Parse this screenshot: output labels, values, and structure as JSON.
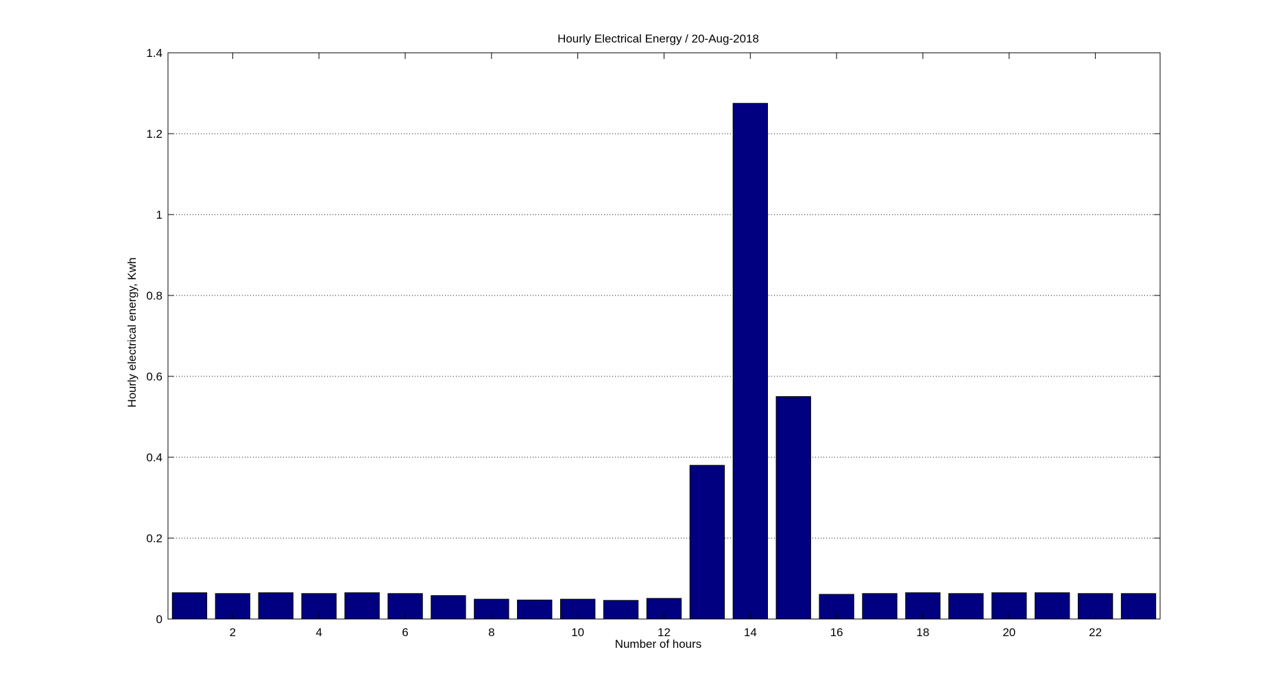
{
  "chart_data": {
    "type": "bar",
    "title": "Hourly Electrical Energy / 20-Aug-2018",
    "xlabel": "Number of hours",
    "ylabel": "Hourly electrical energy, Kwh",
    "x": [
      1,
      2,
      3,
      4,
      5,
      6,
      7,
      8,
      9,
      10,
      11,
      12,
      13,
      14,
      15,
      16,
      17,
      18,
      19,
      20,
      21,
      22,
      23
    ],
    "values": [
      0.065,
      0.063,
      0.065,
      0.063,
      0.065,
      0.063,
      0.058,
      0.049,
      0.047,
      0.049,
      0.046,
      0.051,
      0.38,
      1.275,
      0.55,
      0.061,
      0.063,
      0.065,
      0.063,
      0.065,
      0.065,
      0.063,
      0.063
    ],
    "xlim": [
      0.5,
      23.5
    ],
    "ylim": [
      0,
      1.4
    ],
    "xticks": [
      "2",
      "4",
      "6",
      "8",
      "10",
      "12",
      "14",
      "16",
      "18",
      "20",
      "22"
    ],
    "xtick_values": [
      2,
      4,
      6,
      8,
      10,
      12,
      14,
      16,
      18,
      20,
      22
    ],
    "yticks": [
      "0",
      "0.2",
      "0.4",
      "0.6",
      "0.8",
      "1",
      "1.2",
      "1.4"
    ],
    "ytick_values": [
      0,
      0.2,
      0.4,
      0.6,
      0.8,
      1,
      1.2,
      1.4
    ],
    "grid": "y-dotted",
    "colors": {
      "bar": "#000080",
      "axes": "#000000",
      "grid": "#000000"
    }
  }
}
